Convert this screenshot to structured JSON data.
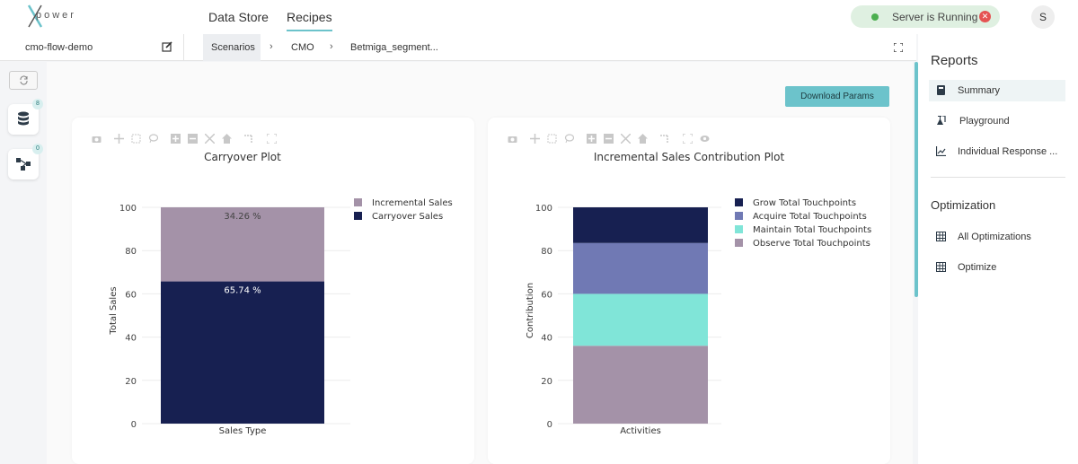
{
  "brand": {
    "logo_text": "power"
  },
  "nav": {
    "items": [
      {
        "label": "Data Store"
      },
      {
        "label": "Recipes"
      }
    ]
  },
  "server": {
    "status": "Server is Running"
  },
  "user": {
    "initial": "S"
  },
  "flow": {
    "name": "cmo-flow-demo"
  },
  "breadcrumb": {
    "items": [
      {
        "label": "Scenarios"
      },
      {
        "label": "CMO"
      },
      {
        "label": "Betmiga_segment..."
      }
    ]
  },
  "rail": {
    "datasets_count": "8",
    "flows_count": "0"
  },
  "main": {
    "download_label": "Download Params"
  },
  "reports": {
    "heading": "Reports",
    "items": [
      {
        "label": "Summary",
        "icon": "book-icon"
      },
      {
        "label": "Playground",
        "icon": "flask-icon"
      },
      {
        "label": "Individual Response ...",
        "icon": "line-chart-icon"
      }
    ]
  },
  "optimization": {
    "heading": "Optimization",
    "items": [
      {
        "label": "All Optimizations",
        "icon": "grid-icon"
      },
      {
        "label": "Optimize",
        "icon": "grid-icon"
      }
    ]
  },
  "chart_data": [
    {
      "type": "bar",
      "stacked": true,
      "title": "Carryover Plot",
      "xlabel": "Sales Type",
      "ylabel": "Total Sales",
      "ylim": [
        0,
        100
      ],
      "yticks": [
        0,
        20,
        40,
        60,
        80,
        100
      ],
      "categories": [
        ""
      ],
      "series": [
        {
          "name": "Carryover Sales",
          "values": [
            65.74
          ],
          "color": "#172051",
          "label": "65.74 %"
        },
        {
          "name": "Incremental Sales",
          "values": [
            34.26
          ],
          "color": "#a492a8",
          "label": "34.26 %"
        }
      ],
      "legend_order": [
        "Incremental Sales",
        "Carryover Sales"
      ],
      "legend_position": "right"
    },
    {
      "type": "bar",
      "stacked": true,
      "title": "Incremental Sales Contribution Plot",
      "xlabel": "Activities",
      "ylabel": "Contribution",
      "ylim": [
        0,
        100
      ],
      "yticks": [
        0,
        20,
        40,
        60,
        80,
        100
      ],
      "categories": [
        ""
      ],
      "series": [
        {
          "name": "Observe Total Touchpoints",
          "values": [
            36
          ],
          "color": "#a492a8"
        },
        {
          "name": "Maintain Total Touchpoints",
          "values": [
            24
          ],
          "color": "#80e5d8"
        },
        {
          "name": "Acquire Total Touchpoints",
          "values": [
            23.5
          ],
          "color": "#7079b4"
        },
        {
          "name": "Grow Total Touchpoints",
          "values": [
            16.5
          ],
          "color": "#172051"
        }
      ],
      "legend_order": [
        "Grow Total Touchpoints",
        "Acquire Total Touchpoints",
        "Maintain Total Touchpoints",
        "Observe Total Touchpoints"
      ],
      "legend_position": "right"
    }
  ]
}
